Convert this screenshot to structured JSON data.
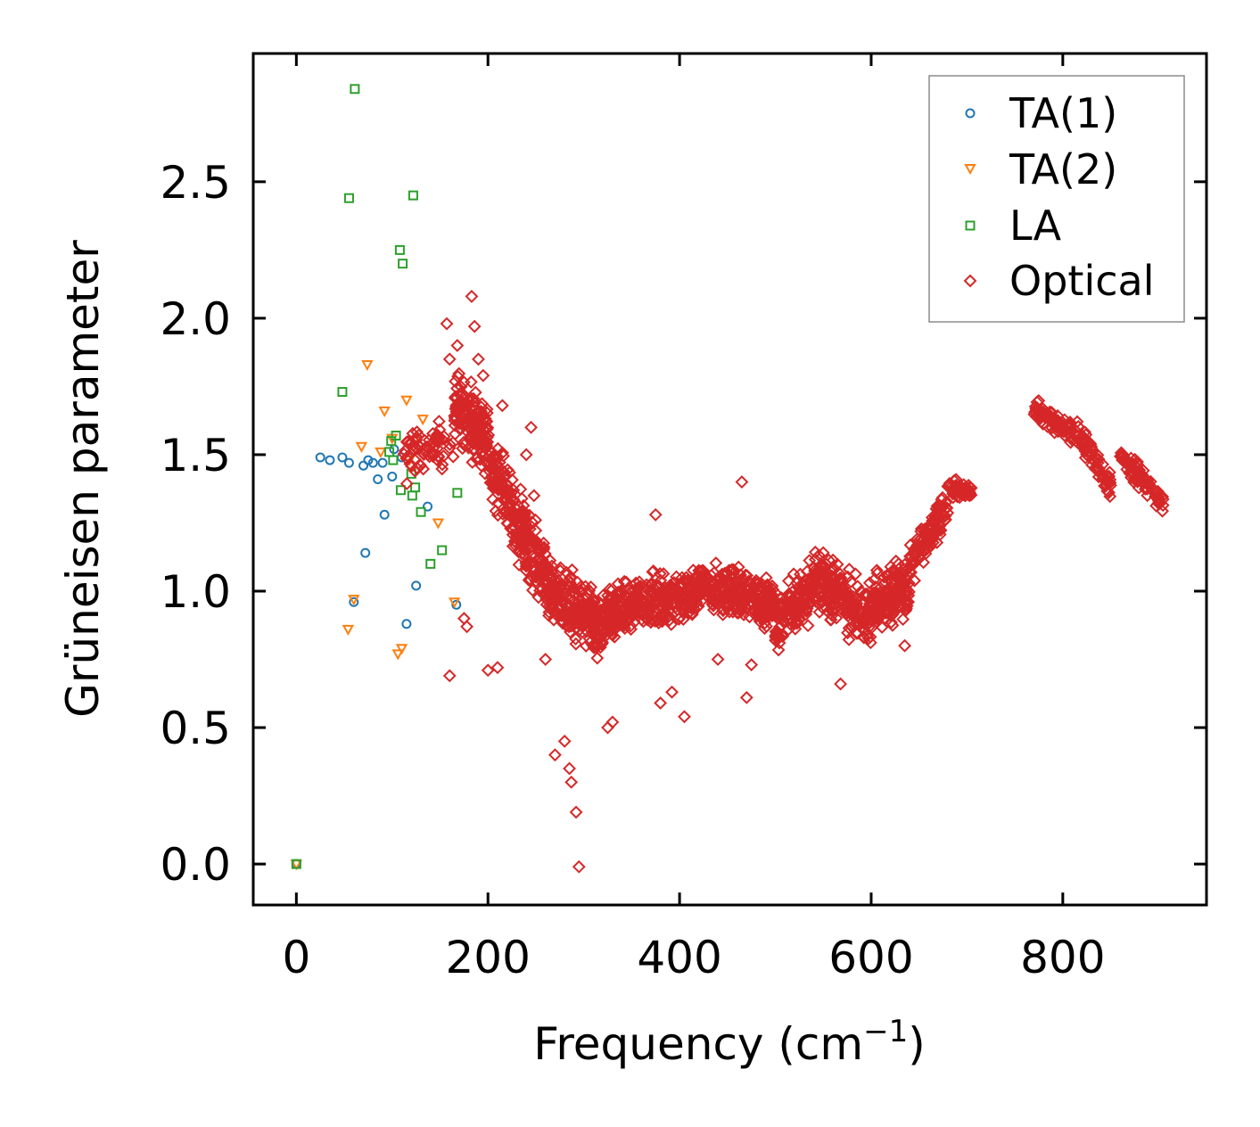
{
  "chart_data": {
    "type": "scatter",
    "title": "",
    "xlabel": "Frequency (cm",
    "xlabel_superscript": "−1",
    "xlabel_suffix": ")",
    "ylabel": "Grüneisen parameter",
    "xlim": [
      -45,
      950
    ],
    "ylim": [
      -0.15,
      2.97
    ],
    "xticks": [
      0,
      200,
      400,
      600,
      800
    ],
    "xtick_labels": [
      "0",
      "200",
      "400",
      "600",
      "800"
    ],
    "yticks": [
      0.0,
      0.5,
      1.0,
      1.5,
      2.0,
      2.5
    ],
    "ytick_labels": [
      "0.0",
      "0.5",
      "1.0",
      "1.5",
      "2.0",
      "2.5"
    ],
    "legend_position": "top-right",
    "grid": false,
    "series": [
      {
        "name": "TA(1)",
        "color": "#1f77b4",
        "marker": "circle",
        "points": [
          [
            0,
            0.0
          ],
          [
            25,
            1.49
          ],
          [
            35,
            1.48
          ],
          [
            48,
            1.49
          ],
          [
            55,
            1.47
          ],
          [
            60,
            0.96
          ],
          [
            70,
            1.46
          ],
          [
            72,
            1.14
          ],
          [
            75,
            1.48
          ],
          [
            80,
            1.47
          ],
          [
            85,
            1.41
          ],
          [
            90,
            1.47
          ],
          [
            92,
            1.28
          ],
          [
            100,
            1.42
          ],
          [
            102,
            1.52
          ],
          [
            110,
            1.49
          ],
          [
            115,
            0.88
          ],
          [
            125,
            1.02
          ],
          [
            137,
            1.31
          ],
          [
            167,
            0.95
          ]
        ]
      },
      {
        "name": "TA(2)",
        "color": "#ff7f0e",
        "marker": "triangle-down",
        "points": [
          [
            0,
            0.0
          ],
          [
            54,
            0.86
          ],
          [
            60,
            0.97
          ],
          [
            68,
            1.53
          ],
          [
            74,
            1.83
          ],
          [
            88,
            1.51
          ],
          [
            92,
            1.66
          ],
          [
            100,
            1.56
          ],
          [
            106,
            0.77
          ],
          [
            110,
            0.79
          ],
          [
            115,
            1.7
          ],
          [
            118,
            1.48
          ],
          [
            125,
            1.55
          ],
          [
            132,
            1.63
          ],
          [
            148,
            1.25
          ],
          [
            165,
            0.96
          ]
        ]
      },
      {
        "name": "LA",
        "color": "#2ca02c",
        "marker": "square",
        "points": [
          [
            0,
            0.0
          ],
          [
            48,
            1.73
          ],
          [
            55,
            2.44
          ],
          [
            61,
            2.84
          ],
          [
            97,
            1.51
          ],
          [
            99,
            1.55
          ],
          [
            101,
            1.48
          ],
          [
            104,
            1.57
          ],
          [
            108,
            2.25
          ],
          [
            109,
            1.37
          ],
          [
            111,
            2.2
          ],
          [
            120,
            1.43
          ],
          [
            121,
            1.35
          ],
          [
            122,
            2.45
          ],
          [
            124,
            1.38
          ],
          [
            130,
            1.29
          ],
          [
            140,
            1.1
          ],
          [
            152,
            1.15
          ],
          [
            168,
            1.36
          ]
        ]
      },
      {
        "name": "Optical",
        "color": "#d62728",
        "marker": "diamond",
        "points": []
      }
    ],
    "optical_model": {
      "description": "Dense band of optical-mode points (values in data units)",
      "segments": [
        {
          "range": [
            110,
            165
          ],
          "center": [
            1.48,
            1.55
          ],
          "spread": 0.12,
          "count": 70
        },
        {
          "range": [
            165,
            200
          ],
          "center": [
            1.7,
            1.55
          ],
          "spread": 0.17,
          "count": 160
        },
        {
          "range": [
            200,
            260
          ],
          "center": [
            1.48,
            1.05
          ],
          "spread": 0.17,
          "count": 240
        },
        {
          "range": [
            260,
            320
          ],
          "center": [
            1.0,
            0.86
          ],
          "spread": 0.16,
          "count": 240
        },
        {
          "range": [
            320,
            420
          ],
          "center": [
            0.92,
            0.99
          ],
          "spread": 0.13,
          "count": 330
        },
        {
          "range": [
            420,
            500
          ],
          "center": [
            1.02,
            0.96
          ],
          "spread": 0.13,
          "count": 260
        },
        {
          "range": [
            500,
            540
          ],
          "center": [
            0.88,
            1.02
          ],
          "spread": 0.14,
          "count": 140
        },
        {
          "range": [
            540,
            600
          ],
          "center": [
            1.05,
            0.9
          ],
          "spread": 0.15,
          "count": 210
        },
        {
          "range": [
            600,
            640
          ],
          "center": [
            0.96,
            1.02
          ],
          "spread": 0.15,
          "count": 150
        },
        {
          "range": [
            640,
            680
          ],
          "center": [
            1.08,
            1.32
          ],
          "spread": 0.1,
          "count": 110
        },
        {
          "range": [
            680,
            705
          ],
          "center": [
            1.38,
            1.36
          ],
          "spread": 0.04,
          "count": 50
        },
        {
          "range": [
            770,
            820
          ],
          "center": [
            1.66,
            1.56
          ],
          "spread": 0.06,
          "count": 90
        },
        {
          "range": [
            820,
            850
          ],
          "center": [
            1.56,
            1.38
          ],
          "spread": 0.06,
          "count": 60
        },
        {
          "range": [
            860,
            905
          ],
          "center": [
            1.5,
            1.32
          ],
          "spread": 0.06,
          "count": 80
        }
      ],
      "outliers": [
        [
          157,
          1.98
        ],
        [
          160,
          1.85
        ],
        [
          168,
          1.9
        ],
        [
          183,
          2.08
        ],
        [
          186,
          1.97
        ],
        [
          190,
          1.85
        ],
        [
          195,
          1.79
        ],
        [
          200,
          0.71
        ],
        [
          210,
          0.72
        ],
        [
          215,
          1.68
        ],
        [
          240,
          1.5
        ],
        [
          245,
          1.6
        ],
        [
          248,
          1.35
        ],
        [
          260,
          0.75
        ],
        [
          270,
          0.4
        ],
        [
          280,
          0.45
        ],
        [
          285,
          0.35
        ],
        [
          287,
          0.3
        ],
        [
          292,
          0.19
        ],
        [
          295,
          -0.01
        ],
        [
          375,
          1.28
        ],
        [
          380,
          0.59
        ],
        [
          392,
          0.63
        ],
        [
          405,
          0.54
        ],
        [
          440,
          0.75
        ],
        [
          465,
          1.4
        ],
        [
          470,
          0.61
        ],
        [
          475,
          0.73
        ],
        [
          568,
          0.66
        ],
        [
          635,
          0.8
        ],
        [
          325,
          0.5
        ],
        [
          330,
          0.52
        ],
        [
          160,
          0.69
        ],
        [
          175,
          0.9
        ],
        [
          178,
          0.87
        ]
      ]
    }
  }
}
